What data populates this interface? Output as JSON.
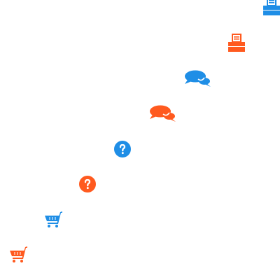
{
  "colors": {
    "blue": "#1f8ee6",
    "orange": "#ff5a1f"
  },
  "icons": [
    {
      "name": "printer-icon",
      "color": "blue"
    },
    {
      "name": "printer-icon",
      "color": "orange"
    },
    {
      "name": "chat-bubbles-icon",
      "color": "blue"
    },
    {
      "name": "chat-bubbles-icon",
      "color": "orange"
    },
    {
      "name": "help-question-icon",
      "color": "blue"
    },
    {
      "name": "help-question-icon",
      "color": "orange"
    },
    {
      "name": "shopping-cart-icon",
      "color": "blue"
    },
    {
      "name": "shopping-cart-icon",
      "color": "orange"
    }
  ]
}
